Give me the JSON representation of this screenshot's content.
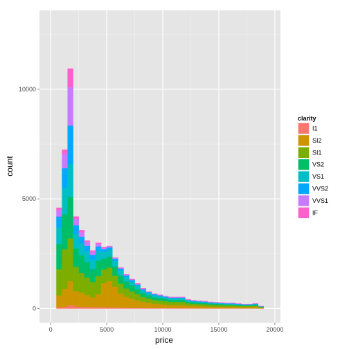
{
  "chart_data": {
    "type": "bar",
    "stacked": true,
    "xlabel": "price",
    "ylabel": "count",
    "xlim": [
      -1000,
      20500
    ],
    "ylim": [
      -650,
      13600
    ],
    "x_ticks": [
      0,
      5000,
      10000,
      15000,
      20000
    ],
    "x_tick_labels": [
      "0",
      "5000",
      "10000",
      "15000",
      "20000"
    ],
    "y_ticks": [
      0,
      5000,
      10000
    ],
    "y_tick_labels": [
      "0",
      "5000",
      "10000"
    ],
    "grid": true,
    "legend": {
      "title": "clarity",
      "position": "right"
    },
    "bins": [
      {
        "x0": 0,
        "x1": 500,
        "counts": [
          0,
          0,
          0,
          0,
          0,
          0,
          0,
          0
        ]
      },
      {
        "x0": 500,
        "x1": 1000,
        "counts": [
          50,
          550,
          1200,
          1150,
          750,
          500,
          300,
          100
        ]
      },
      {
        "x0": 1000,
        "x1": 1500,
        "counts": [
          80,
          820,
          1800,
          1600,
          1200,
          900,
          650,
          200
        ]
      },
      {
        "x0": 1500,
        "x1": 2000,
        "counts": [
          150,
          1100,
          1950,
          1900,
          1500,
          1750,
          1750,
          850
        ]
      },
      {
        "x0": 2000,
        "x1": 2500,
        "counts": [
          100,
          700,
          1100,
          850,
          650,
          400,
          300,
          100
        ]
      },
      {
        "x0": 2500,
        "x1": 3000,
        "counts": [
          80,
          650,
          900,
          800,
          550,
          300,
          200,
          100
        ]
      },
      {
        "x0": 3000,
        "x1": 3500,
        "counts": [
          70,
          550,
          800,
          700,
          500,
          250,
          160,
          70
        ]
      },
      {
        "x0": 3500,
        "x1": 4000,
        "counts": [
          60,
          450,
          700,
          600,
          440,
          200,
          140,
          60
        ]
      },
      {
        "x0": 4000,
        "x1": 4500,
        "counts": [
          60,
          600,
          820,
          700,
          450,
          200,
          120,
          50
        ]
      },
      {
        "x0": 4500,
        "x1": 5000,
        "counts": [
          60,
          1100,
          620,
          500,
          300,
          130,
          60,
          30
        ]
      },
      {
        "x0": 5000,
        "x1": 5500,
        "counts": [
          50,
          1200,
          620,
          500,
          300,
          120,
          50,
          20
        ]
      },
      {
        "x0": 5500,
        "x1": 6000,
        "counts": [
          50,
          950,
          500,
          420,
          250,
          100,
          40,
          20
        ]
      },
      {
        "x0": 6000,
        "x1": 6500,
        "counts": [
          40,
          650,
          450,
          370,
          220,
          90,
          30,
          20
        ]
      },
      {
        "x0": 6500,
        "x1": 7000,
        "counts": [
          40,
          500,
          380,
          320,
          190,
          80,
          30,
          20
        ]
      },
      {
        "x0": 7000,
        "x1": 7500,
        "counts": [
          30,
          420,
          330,
          280,
          170,
          70,
          30,
          20
        ]
      },
      {
        "x0": 7500,
        "x1": 8000,
        "counts": [
          30,
          350,
          280,
          230,
          150,
          60,
          30,
          20
        ]
      },
      {
        "x0": 8000,
        "x1": 8500,
        "counts": [
          30,
          280,
          220,
          180,
          120,
          50,
          30,
          20
        ]
      },
      {
        "x0": 8500,
        "x1": 9000,
        "counts": [
          25,
          240,
          190,
          150,
          100,
          40,
          20,
          15
        ]
      },
      {
        "x0": 9000,
        "x1": 9500,
        "counts": [
          20,
          200,
          170,
          130,
          90,
          40,
          20,
          10
        ]
      },
      {
        "x0": 9500,
        "x1": 10000,
        "counts": [
          20,
          180,
          160,
          120,
          80,
          40,
          20,
          10
        ]
      },
      {
        "x0": 10000,
        "x1": 10500,
        "counts": [
          20,
          160,
          150,
          110,
          70,
          30,
          20,
          10
        ]
      },
      {
        "x0": 10500,
        "x1": 11000,
        "counts": [
          20,
          140,
          140,
          100,
          70,
          30,
          20,
          10
        ]
      },
      {
        "x0": 11000,
        "x1": 11500,
        "counts": [
          20,
          140,
          140,
          100,
          70,
          30,
          20,
          10
        ]
      },
      {
        "x0": 11500,
        "x1": 12000,
        "counts": [
          20,
          140,
          140,
          100,
          70,
          30,
          20,
          10
        ]
      },
      {
        "x0": 12000,
        "x1": 12500,
        "counts": [
          15,
          110,
          110,
          80,
          50,
          25,
          20,
          10
        ]
      },
      {
        "x0": 12500,
        "x1": 13000,
        "counts": [
          15,
          100,
          100,
          70,
          45,
          20,
          20,
          10
        ]
      },
      {
        "x0": 13000,
        "x1": 13500,
        "counts": [
          12,
          95,
          95,
          65,
          40,
          20,
          20,
          10
        ]
      },
      {
        "x0": 13500,
        "x1": 14000,
        "counts": [
          12,
          90,
          90,
          60,
          40,
          20,
          20,
          10
        ]
      },
      {
        "x0": 14000,
        "x1": 14500,
        "counts": [
          10,
          80,
          80,
          55,
          35,
          20,
          15,
          10
        ]
      },
      {
        "x0": 14500,
        "x1": 15000,
        "counts": [
          10,
          75,
          75,
          55,
          30,
          20,
          15,
          10
        ]
      },
      {
        "x0": 15000,
        "x1": 15500,
        "counts": [
          10,
          70,
          70,
          50,
          30,
          20,
          15,
          10
        ]
      },
      {
        "x0": 15500,
        "x1": 16000,
        "counts": [
          10,
          65,
          65,
          45,
          30,
          20,
          15,
          10
        ]
      },
      {
        "x0": 16000,
        "x1": 16500,
        "counts": [
          10,
          65,
          65,
          45,
          30,
          20,
          15,
          10
        ]
      },
      {
        "x0": 16500,
        "x1": 17000,
        "counts": [
          10,
          60,
          55,
          40,
          25,
          20,
          15,
          5
        ]
      },
      {
        "x0": 17000,
        "x1": 17500,
        "counts": [
          10,
          55,
          50,
          35,
          25,
          15,
          10,
          5
        ]
      },
      {
        "x0": 17500,
        "x1": 18000,
        "counts": [
          10,
          55,
          50,
          35,
          25,
          15,
          10,
          5
        ]
      },
      {
        "x0": 18000,
        "x1": 18500,
        "counts": [
          10,
          60,
          55,
          40,
          30,
          20,
          15,
          10
        ]
      },
      {
        "x0": 18500,
        "x1": 19000,
        "counts": [
          5,
          30,
          25,
          20,
          15,
          10,
          5,
          5
        ]
      }
    ],
    "series": [
      {
        "name": "I1",
        "color": "#F8766D"
      },
      {
        "name": "SI2",
        "color": "#CD9600"
      },
      {
        "name": "SI1",
        "color": "#7CAE00"
      },
      {
        "name": "VS2",
        "color": "#00BE67"
      },
      {
        "name": "VS1",
        "color": "#00BFC4"
      },
      {
        "name": "VVS2",
        "color": "#00A9FF"
      },
      {
        "name": "VVS1",
        "color": "#C77CFF"
      },
      {
        "name": "IF",
        "color": "#FF61CC"
      }
    ],
    "colors": {
      "panel_background": "#E5E5E5",
      "grid_major": "#FFFFFF",
      "grid_minor": "#F2F2F2"
    }
  }
}
